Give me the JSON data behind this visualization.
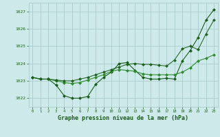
{
  "background_color": "#cde9e9",
  "grid_color": "#a8cccc",
  "line_color1": "#1a5c1a",
  "line_color2": "#2d8c2d",
  "xlabel": "Graphe pression niveau de la mer (hPa)",
  "xlim": [
    -0.5,
    23.5
  ],
  "ylim": [
    1021.5,
    1027.5
  ],
  "yticks": [
    1022,
    1023,
    1024,
    1025,
    1026,
    1027
  ],
  "xticks": [
    0,
    1,
    2,
    3,
    4,
    5,
    6,
    7,
    8,
    9,
    10,
    11,
    12,
    13,
    14,
    15,
    16,
    17,
    18,
    19,
    20,
    21,
    22,
    23
  ],
  "series1_x": [
    0,
    1,
    2,
    3,
    4,
    5,
    6,
    7,
    8,
    9,
    10,
    11,
    12,
    13,
    14,
    15,
    16,
    17,
    18,
    19,
    20,
    21,
    22,
    23
  ],
  "series1_y": [
    1023.2,
    1023.1,
    1023.1,
    1022.75,
    1022.15,
    1022.0,
    1022.0,
    1022.1,
    1022.8,
    1023.2,
    1023.5,
    1024.0,
    1024.05,
    1023.6,
    1023.2,
    1023.1,
    1023.1,
    1023.15,
    1023.1,
    1024.15,
    1024.75,
    1025.5,
    1026.5,
    1027.1
  ],
  "series2_x": [
    0,
    1,
    2,
    3,
    4,
    5,
    6,
    7,
    8,
    9,
    10,
    11,
    12,
    13,
    14,
    15,
    16,
    17,
    18,
    19,
    20,
    21,
    22,
    23
  ],
  "series2_y": [
    1023.2,
    1023.1,
    1023.1,
    1023.0,
    1022.9,
    1022.85,
    1022.9,
    1023.05,
    1023.2,
    1023.35,
    1023.55,
    1023.65,
    1023.6,
    1023.55,
    1023.4,
    1023.35,
    1023.35,
    1023.35,
    1023.35,
    1023.5,
    1023.75,
    1024.15,
    1024.3,
    1024.5
  ],
  "series3_x": [
    0,
    1,
    2,
    3,
    4,
    5,
    6,
    7,
    8,
    9,
    10,
    11,
    12,
    13,
    14,
    15,
    16,
    17,
    18,
    19,
    20,
    21,
    22,
    23
  ],
  "series3_y": [
    1023.2,
    1023.1,
    1023.1,
    1023.05,
    1023.0,
    1023.0,
    1023.1,
    1023.2,
    1023.35,
    1023.5,
    1023.65,
    1023.8,
    1023.95,
    1024.0,
    1023.95,
    1023.95,
    1023.9,
    1023.85,
    1024.2,
    1024.85,
    1025.0,
    1024.8,
    1025.7,
    1026.5
  ]
}
